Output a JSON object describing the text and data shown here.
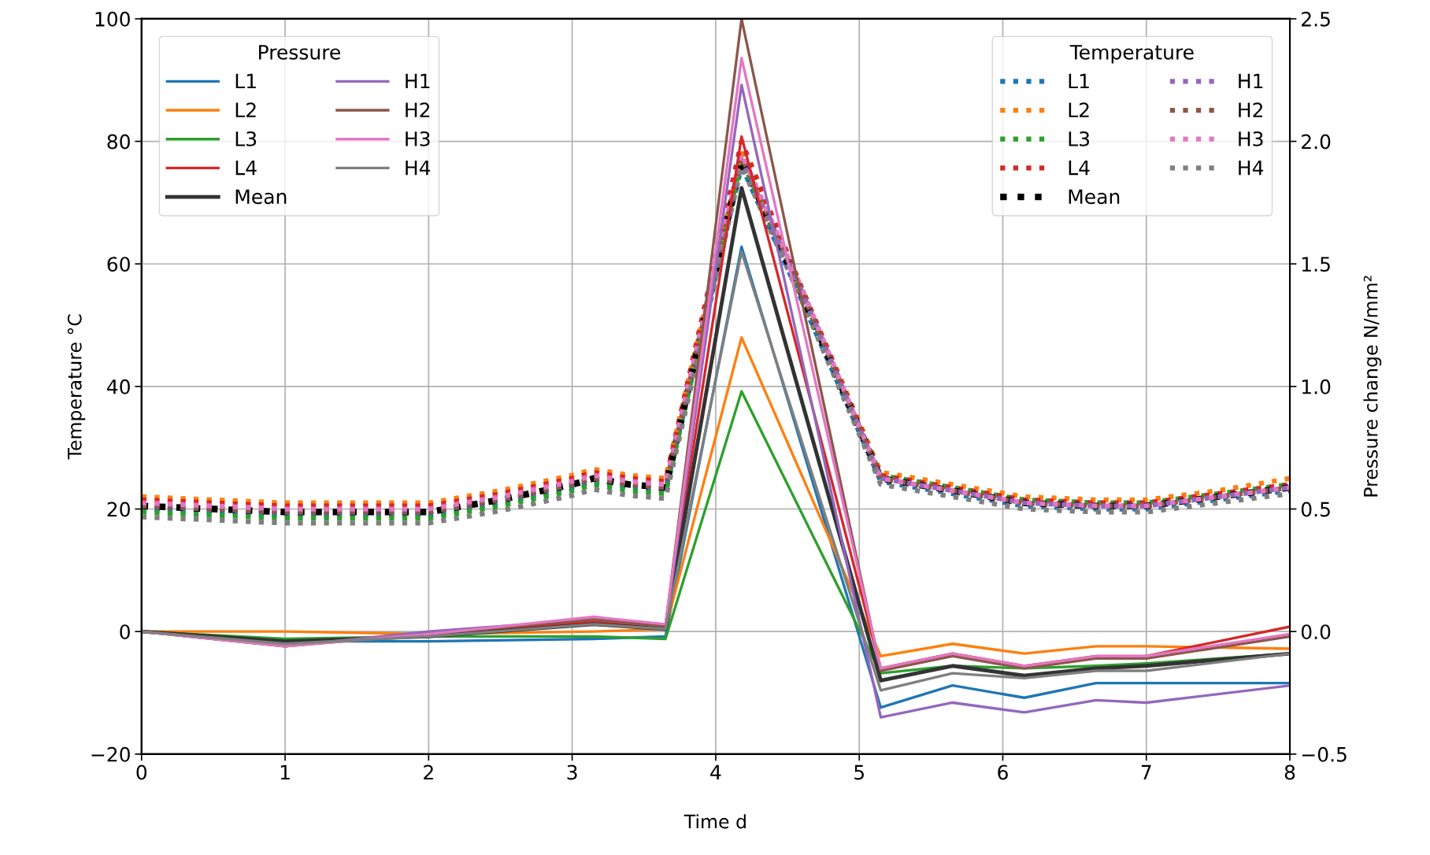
{
  "chart_data": {
    "type": "line",
    "xlabel": "Time d",
    "ylabel": "Temperature °C",
    "y2label": "Pressure change N/mm²",
    "xlim": [
      0,
      8
    ],
    "xticks": [
      0,
      1,
      2,
      3,
      4,
      5,
      6,
      7,
      8
    ],
    "ylim": [
      -20,
      100
    ],
    "yticks": [
      {
        "value": -20,
        "label": "−20"
      },
      0,
      20,
      40,
      60,
      80,
      100
    ],
    "y2lim": [
      -0.5,
      2.5
    ],
    "y2ticks": [
      {
        "value": -0.5,
        "label": "−0.5"
      },
      {
        "value": 0,
        "label": "0.0"
      },
      {
        "value": 0.5,
        "label": "0.5"
      },
      {
        "value": 1,
        "label": "1.0"
      },
      {
        "value": 1.5,
        "label": "1.5"
      },
      {
        "value": 2,
        "label": "2.0"
      },
      {
        "value": 2.5,
        "label": "2.5"
      }
    ],
    "grid": true,
    "legend": [
      "top left",
      "top right"
    ],
    "legend_title": [
      "Pressure",
      "Temperature"
    ],
    "series": [
      {
        "name": "L1",
        "axis": "y2",
        "line_style": "solid",
        "color": "#1f77b4",
        "x": [
          0,
          1,
          2,
          3.15,
          3.65,
          4.18,
          5.15,
          5.65,
          6.15,
          6.65,
          7,
          8
        ],
        "values": [
          0,
          -0.04,
          -0.04,
          -0.03,
          -0.02,
          1.57,
          -0.31,
          -0.22,
          -0.27,
          -0.21,
          -0.21,
          -0.21
        ]
      },
      {
        "name": "L2",
        "axis": "y2",
        "line_style": "solid",
        "color": "#ff7f0e",
        "x": [
          0,
          1,
          2,
          3.15,
          3.65,
          4.18,
          5.15,
          5.65,
          6.15,
          6.65,
          7,
          8
        ],
        "values": [
          0,
          0,
          -0.01,
          0,
          0.01,
          1.2,
          -0.1,
          -0.05,
          -0.09,
          -0.06,
          -0.06,
          -0.07
        ]
      },
      {
        "name": "L3",
        "axis": "y2",
        "line_style": "solid",
        "color": "#2ca02c",
        "x": [
          0,
          1,
          2,
          3.15,
          3.65,
          4.18,
          5.15,
          5.65,
          6.15,
          6.65,
          7,
          8
        ],
        "values": [
          0,
          -0.03,
          -0.02,
          -0.02,
          -0.03,
          0.98,
          -0.17,
          -0.14,
          -0.15,
          -0.14,
          -0.13,
          -0.09
        ]
      },
      {
        "name": "L4",
        "axis": "y2",
        "line_style": "solid",
        "color": "#d62728",
        "x": [
          0,
          1,
          2,
          3.15,
          3.65,
          4.18,
          5.15,
          5.65,
          6.15,
          6.65,
          7,
          8
        ],
        "values": [
          0,
          -0.05,
          -0.01,
          0.04,
          0.02,
          2.02,
          -0.15,
          -0.09,
          -0.14,
          -0.1,
          -0.1,
          0.02
        ]
      },
      {
        "name": "Mean",
        "axis": "y2",
        "line_style": "solid",
        "color": "#333333",
        "x": [
          0,
          1,
          2,
          3.15,
          3.65,
          4.18,
          5.15,
          5.65,
          6.15,
          6.65,
          7,
          8
        ],
        "values": [
          0,
          -0.04,
          -0.02,
          0.03,
          0.01,
          1.81,
          -0.2,
          -0.14,
          -0.18,
          -0.15,
          -0.14,
          -0.09
        ]
      },
      {
        "name": "H1",
        "axis": "y2",
        "line_style": "solid",
        "color": "#9467bd",
        "x": [
          0,
          1,
          2,
          3.15,
          3.65,
          4.18,
          5.15,
          5.65,
          6.15,
          6.65,
          7,
          8
        ],
        "values": [
          0,
          -0.06,
          0,
          0.05,
          0.02,
          2.23,
          -0.35,
          -0.29,
          -0.33,
          -0.28,
          -0.29,
          -0.22
        ]
      },
      {
        "name": "H2",
        "axis": "y2",
        "line_style": "solid",
        "color": "#8c564b",
        "x": [
          0,
          1,
          2,
          3.15,
          3.65,
          4.18,
          5.15,
          5.65,
          6.15,
          6.65,
          7,
          8
        ],
        "values": [
          0,
          -0.06,
          -0.01,
          0.05,
          0.02,
          2.5,
          -0.16,
          -0.1,
          -0.15,
          -0.11,
          -0.11,
          -0.02
        ]
      },
      {
        "name": "H3",
        "axis": "y2",
        "line_style": "solid",
        "color": "#e377c2",
        "x": [
          0,
          1,
          2,
          3.15,
          3.65,
          4.18,
          5.15,
          5.65,
          6.15,
          6.65,
          7,
          8
        ],
        "values": [
          0,
          -0.06,
          -0.01,
          0.06,
          0.03,
          2.34,
          -0.15,
          -0.09,
          -0.14,
          -0.1,
          -0.1,
          -0.01
        ]
      },
      {
        "name": "H4",
        "axis": "y2",
        "line_style": "solid",
        "color": "#7f7f7f",
        "x": [
          0,
          1,
          2,
          3.15,
          3.65,
          4.18,
          5.15,
          5.65,
          6.15,
          6.65,
          7,
          8
        ],
        "values": [
          0,
          -0.05,
          -0.02,
          0.03,
          0.01,
          1.55,
          -0.24,
          -0.17,
          -0.19,
          -0.16,
          -0.16,
          -0.09
        ]
      },
      {
        "name": "L1",
        "axis": "y",
        "line_style": "dotted",
        "color": "#1f77b4",
        "x": [
          0,
          0.5,
          1,
          1.5,
          2,
          2.5,
          3,
          3.15,
          3.4,
          3.65,
          4.18,
          4.6,
          5.15,
          5.65,
          6.15,
          6.65,
          7,
          7.5,
          8
        ],
        "values": [
          20,
          19.5,
          19,
          19,
          19,
          21,
          23.5,
          24.5,
          23.5,
          23,
          76,
          54,
          24.5,
          22.5,
          20.5,
          20,
          20,
          21.5,
          23
        ]
      },
      {
        "name": "L2",
        "axis": "y",
        "line_style": "dotted",
        "color": "#ff7f0e",
        "x": [
          0,
          0.5,
          1,
          1.5,
          2,
          2.5,
          3,
          3.15,
          3.4,
          3.65,
          4.18,
          4.6,
          5.15,
          5.65,
          6.15,
          6.65,
          7,
          7.5,
          8
        ],
        "values": [
          22,
          21.5,
          21,
          21,
          21,
          23,
          25.5,
          26.5,
          25.5,
          25,
          78,
          56,
          26,
          24,
          22,
          21.5,
          21.5,
          23,
          25
        ]
      },
      {
        "name": "L3",
        "axis": "y",
        "line_style": "dotted",
        "color": "#2ca02c",
        "x": [
          0,
          0.5,
          1,
          1.5,
          2,
          2.5,
          3,
          3.15,
          3.4,
          3.65,
          4.18,
          4.6,
          5.15,
          5.65,
          6.15,
          6.65,
          7,
          7.5,
          8
        ],
        "values": [
          19.5,
          19,
          18.5,
          18.5,
          18.5,
          20.5,
          23,
          24,
          23,
          22.5,
          77,
          55,
          25.5,
          23.5,
          21.5,
          21,
          21,
          22.5,
          24
        ]
      },
      {
        "name": "L4",
        "axis": "y",
        "line_style": "dotted",
        "color": "#d62728",
        "x": [
          0,
          0.5,
          1,
          1.5,
          2,
          2.5,
          3,
          3.15,
          3.4,
          3.65,
          4.18,
          4.6,
          5.15,
          5.65,
          6.15,
          6.65,
          7,
          7.5,
          8
        ],
        "values": [
          21.5,
          21,
          20.5,
          20.5,
          20.5,
          22.5,
          25,
          26,
          25,
          24.5,
          80,
          56,
          25.5,
          23.5,
          21.5,
          21,
          21,
          22.5,
          24
        ]
      },
      {
        "name": "Mean",
        "axis": "y",
        "line_style": "dotted",
        "color": "#000000",
        "x": [
          0,
          0.5,
          1,
          1.5,
          2,
          2.5,
          3,
          3.15,
          3.4,
          3.65,
          4.18,
          4.6,
          5.15,
          5.65,
          6.15,
          6.65,
          7,
          7.5,
          8
        ],
        "values": [
          20.5,
          20,
          19.5,
          19.5,
          19.5,
          21.5,
          24,
          25,
          24,
          23.5,
          77,
          55,
          25,
          23,
          21,
          20.5,
          20.5,
          22,
          23.5
        ]
      },
      {
        "name": "H1",
        "axis": "y",
        "line_style": "dotted",
        "color": "#9467bd",
        "x": [
          0,
          0.5,
          1,
          1.5,
          2,
          2.5,
          3,
          3.15,
          3.4,
          3.65,
          4.18,
          4.6,
          5.15,
          5.65,
          6.15,
          6.65,
          7,
          7.5,
          8
        ],
        "values": [
          20.5,
          20,
          19.5,
          19.5,
          19.5,
          21.5,
          24,
          25,
          24,
          23.5,
          77,
          55.5,
          25,
          23,
          21,
          20.5,
          20.5,
          22,
          23.5
        ]
      },
      {
        "name": "H2",
        "axis": "y",
        "line_style": "dotted",
        "color": "#8c564b",
        "x": [
          0,
          0.5,
          1,
          1.5,
          2,
          2.5,
          3,
          3.15,
          3.4,
          3.65,
          4.18,
          4.6,
          5.15,
          5.65,
          6.15,
          6.65,
          7,
          7.5,
          8
        ],
        "values": [
          20.5,
          20,
          19.5,
          19.5,
          19.5,
          21.5,
          24,
          25,
          24,
          23.5,
          77.5,
          55.5,
          25,
          23,
          21,
          20.5,
          20.5,
          22,
          23.5
        ]
      },
      {
        "name": "H3",
        "axis": "y",
        "line_style": "dotted",
        "color": "#e377c2",
        "x": [
          0,
          0.5,
          1,
          1.5,
          2,
          2.5,
          3,
          3.15,
          3.4,
          3.65,
          4.18,
          4.6,
          5.15,
          5.65,
          6.15,
          6.65,
          7,
          7.5,
          8
        ],
        "values": [
          21,
          20.5,
          20,
          20,
          20,
          22,
          24.5,
          25.5,
          24.5,
          24,
          78,
          56,
          25,
          23,
          21,
          20.5,
          20.5,
          22,
          23.5
        ]
      },
      {
        "name": "H4",
        "axis": "y",
        "line_style": "dotted",
        "color": "#7f7f7f",
        "x": [
          0,
          0.5,
          1,
          1.5,
          2,
          2.5,
          3,
          3.15,
          3.4,
          3.65,
          4.18,
          4.6,
          5.15,
          5.65,
          6.15,
          6.65,
          7,
          7.5,
          8
        ],
        "values": [
          18.7,
          18.2,
          17.7,
          17.7,
          17.7,
          19.7,
          22.2,
          23.2,
          22.2,
          21.7,
          76,
          54,
          24,
          22,
          20,
          19.5,
          19.5,
          21,
          22.5
        ]
      }
    ]
  }
}
